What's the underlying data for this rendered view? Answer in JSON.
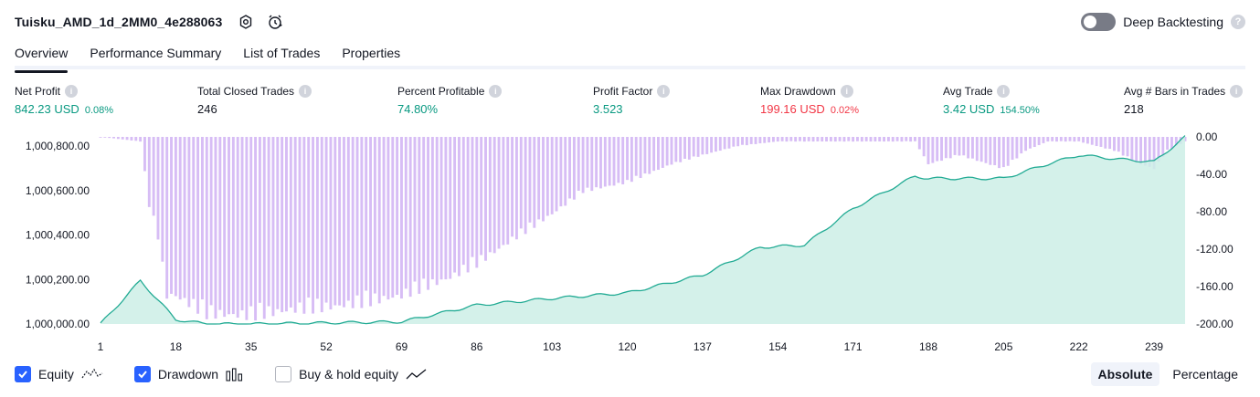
{
  "header": {
    "strategy_name": "Tuisku_AMD_1d_2MM0_4e288063"
  },
  "deep_backtesting": {
    "label": "Deep Backtesting",
    "enabled": false
  },
  "tabs": [
    "Overview",
    "Performance Summary",
    "List of Trades",
    "Properties"
  ],
  "active_tab": "Overview",
  "metrics": {
    "net_profit": {
      "label": "Net Profit",
      "value": "842.23 USD",
      "pct": "0.08%"
    },
    "total_closed_trades": {
      "label": "Total Closed Trades",
      "value": "246"
    },
    "percent_profitable": {
      "label": "Percent Profitable",
      "value": "74.80%"
    },
    "profit_factor": {
      "label": "Profit Factor",
      "value": "3.523"
    },
    "max_drawdown": {
      "label": "Max Drawdown",
      "value": "199.16 USD",
      "pct": "0.02%"
    },
    "avg_trade": {
      "label": "Avg Trade",
      "value": "3.42 USD",
      "pct": "154.50%"
    },
    "avg_bars": {
      "label": "Avg # Bars in Trades",
      "value": "218"
    }
  },
  "colors": {
    "equity_line": "#22ab94",
    "equity_fill": "#cdeee6",
    "drawdown_bar": "#d7bdf5",
    "positive": "#089981",
    "negative": "#f23645",
    "accent": "#2962ff"
  },
  "chart_data": {
    "type": "area",
    "x_ticks": [
      "1",
      "18",
      "35",
      "52",
      "69",
      "86",
      "103",
      "120",
      "137",
      "154",
      "171",
      "188",
      "205",
      "222",
      "239"
    ],
    "x_range": [
      1,
      246
    ],
    "left_axis": {
      "label": "Equity",
      "ticks": [
        "1,000,000.00",
        "1,000,200.00",
        "1,000,400.00",
        "1,000,600.00",
        "1,000,800.00"
      ],
      "range": [
        1000000,
        1000842
      ]
    },
    "right_axis": {
      "label": "Drawdown",
      "ticks": [
        "0.00",
        "-40.00",
        "-80.00",
        "-120.00",
        "-160.00",
        "-200.00"
      ],
      "range": [
        -200,
        0
      ]
    },
    "series": [
      {
        "name": "Equity",
        "type": "area",
        "points": [
          [
            1,
            1000000
          ],
          [
            10,
            1000195
          ],
          [
            18,
            1000020
          ],
          [
            25,
            1000000
          ],
          [
            35,
            1000000
          ],
          [
            52,
            1000005
          ],
          [
            69,
            1000010
          ],
          [
            86,
            1000085
          ],
          [
            103,
            1000115
          ],
          [
            120,
            1000140
          ],
          [
            137,
            1000220
          ],
          [
            150,
            1000345
          ],
          [
            160,
            1000355
          ],
          [
            171,
            1000520
          ],
          [
            185,
            1000665
          ],
          [
            188,
            1000655
          ],
          [
            205,
            1000655
          ],
          [
            215,
            1000720
          ],
          [
            222,
            1000760
          ],
          [
            232,
            1000740
          ],
          [
            239,
            1000730
          ],
          [
            246,
            1000842
          ]
        ]
      },
      {
        "name": "Drawdown",
        "type": "bar",
        "points": [
          [
            1,
            0
          ],
          [
            10,
            -5
          ],
          [
            12,
            -75
          ],
          [
            14,
            -110
          ],
          [
            16,
            -175
          ],
          [
            18,
            -175
          ],
          [
            25,
            -195
          ],
          [
            35,
            -197
          ],
          [
            45,
            -190
          ],
          [
            52,
            -188
          ],
          [
            60,
            -183
          ],
          [
            69,
            -175
          ],
          [
            80,
            -155
          ],
          [
            86,
            -140
          ],
          [
            95,
            -110
          ],
          [
            103,
            -85
          ],
          [
            110,
            -60
          ],
          [
            120,
            -50
          ],
          [
            130,
            -30
          ],
          [
            137,
            -20
          ],
          [
            145,
            -10
          ],
          [
            154,
            -5
          ],
          [
            165,
            -5
          ],
          [
            175,
            -5
          ],
          [
            185,
            -5
          ],
          [
            188,
            -30
          ],
          [
            195,
            -20
          ],
          [
            205,
            -35
          ],
          [
            210,
            -15
          ],
          [
            215,
            -5
          ],
          [
            222,
            -5
          ],
          [
            230,
            -15
          ],
          [
            236,
            -30
          ],
          [
            239,
            -35
          ],
          [
            242,
            -15
          ],
          [
            246,
            -5
          ]
        ]
      },
      {
        "name": "Buy & hold equity",
        "type": "line",
        "visible": false,
        "points": []
      }
    ]
  },
  "legend": {
    "equity": {
      "label": "Equity",
      "checked": true
    },
    "drawdown": {
      "label": "Drawdown",
      "checked": true
    },
    "buy_hold": {
      "label": "Buy & hold equity",
      "checked": false
    }
  },
  "scale_modes": {
    "absolute": "Absolute",
    "percentage": "Percentage",
    "active": "Absolute"
  }
}
